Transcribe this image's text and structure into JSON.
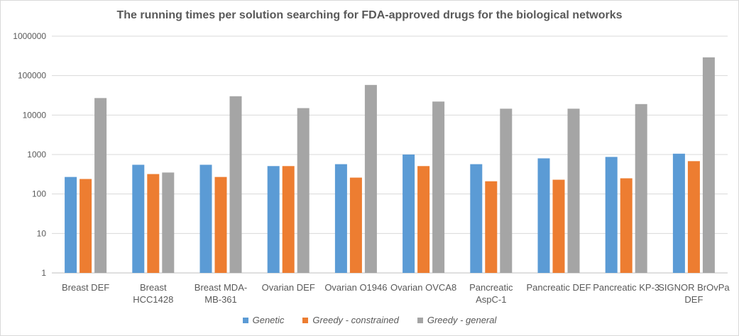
{
  "chart_data": {
    "type": "bar",
    "title": "The running times per solution searching for FDA-approved drugs for the biological networks",
    "y_scale": "log",
    "ylim": [
      1,
      1000000
    ],
    "y_ticks": [
      "1",
      "10",
      "100",
      "1000",
      "10000",
      "100000",
      "1000000"
    ],
    "grid": true,
    "legend_position": "bottom",
    "categories": [
      [
        "Breast DEF"
      ],
      [
        "Breast",
        "HCC1428"
      ],
      [
        "Breast MDA-",
        "MB-361"
      ],
      [
        "Ovarian DEF"
      ],
      [
        "Ovarian O1946"
      ],
      [
        "Ovarian OVCA8"
      ],
      [
        "Pancreatic",
        "AspC-1"
      ],
      [
        "Pancreatic DEF"
      ],
      [
        "Pancreatic KP-3"
      ],
      [
        "SIGNOR BrOvPa",
        "DEF"
      ]
    ],
    "series": [
      {
        "name": "Genetic",
        "color": "#5b9bd5",
        "values": [
          270,
          550,
          550,
          510,
          570,
          1000,
          570,
          800,
          870,
          1050
        ]
      },
      {
        "name": "Greedy - constrained",
        "color": "#ed7d31",
        "values": [
          240,
          320,
          270,
          510,
          260,
          510,
          210,
          230,
          250,
          680
        ]
      },
      {
        "name": "Greedy - general",
        "color": "#a5a5a5",
        "values": [
          27000,
          350,
          30000,
          15000,
          58000,
          22000,
          14500,
          14500,
          19000,
          290000
        ]
      }
    ]
  }
}
